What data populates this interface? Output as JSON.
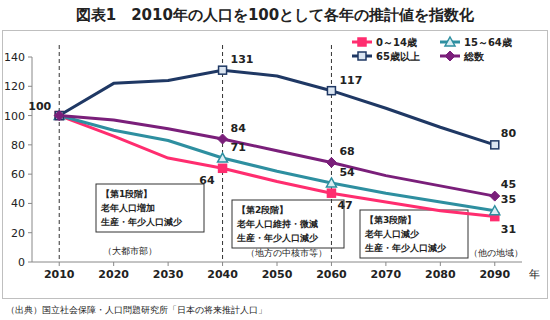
{
  "chart_data": {
    "type": "line",
    "title": "図表1　2010年の人口を100として各年の推計値を指数化",
    "x_label": "年",
    "categories": [
      "2010",
      "2020",
      "2030",
      "2040",
      "2050",
      "2060",
      "2070",
      "2080",
      "2090"
    ],
    "ylim": [
      0,
      140
    ],
    "yticks": [
      0,
      20,
      40,
      60,
      80,
      100,
      120,
      140
    ],
    "grid": false,
    "legend": "upper right",
    "data_labels": true,
    "series": [
      {
        "name": "0～14歳",
        "color": "#ff2d6f",
        "marker": "square",
        "values": [
          100,
          86,
          71,
          64,
          55,
          47,
          41,
          35,
          31
        ],
        "value_labels": [
          null,
          null,
          null,
          "64",
          null,
          "47",
          null,
          null,
          "31"
        ]
      },
      {
        "name": "15～64歳",
        "color": "#2e8fa0",
        "marker": "triangle",
        "values": [
          100,
          90,
          83,
          71,
          62,
          54,
          47,
          41,
          35
        ],
        "value_labels": [
          null,
          null,
          null,
          "71",
          null,
          "54",
          null,
          null,
          "35"
        ]
      },
      {
        "name": "65歳以上",
        "color": "#1f3864",
        "marker": "square",
        "values": [
          100,
          122,
          124,
          131,
          127,
          117,
          105,
          92,
          80
        ],
        "value_labels": [
          null,
          null,
          null,
          "131",
          null,
          "117",
          null,
          null,
          "80"
        ]
      },
      {
        "name": "総数",
        "color": "#7a1f7a",
        "marker": "diamond",
        "values": [
          100,
          97,
          91,
          84,
          76,
          68,
          59,
          52,
          45
        ],
        "value_labels": [
          "100",
          null,
          null,
          "84",
          null,
          "68",
          null,
          null,
          "45"
        ]
      }
    ],
    "annotations": [
      {
        "x": "2010",
        "text": [
          "【第1段階】",
          "老年人口増加",
          "生産・年少人口減少"
        ],
        "region": "（大都市部）"
      },
      {
        "x": "2040",
        "text": [
          "【第2段階】",
          "老年人口維持・微減",
          "生産・年少人口減少"
        ],
        "region": "（地方の中核市等）"
      },
      {
        "x": "2060",
        "text": [
          "【第3段階】",
          "老年人口減少",
          "生産・年少人口減少"
        ],
        "region": "（他の地域）"
      }
    ],
    "source": "（出典）国立社会保障・人口問題研究所「日本の将来推計人口」"
  }
}
